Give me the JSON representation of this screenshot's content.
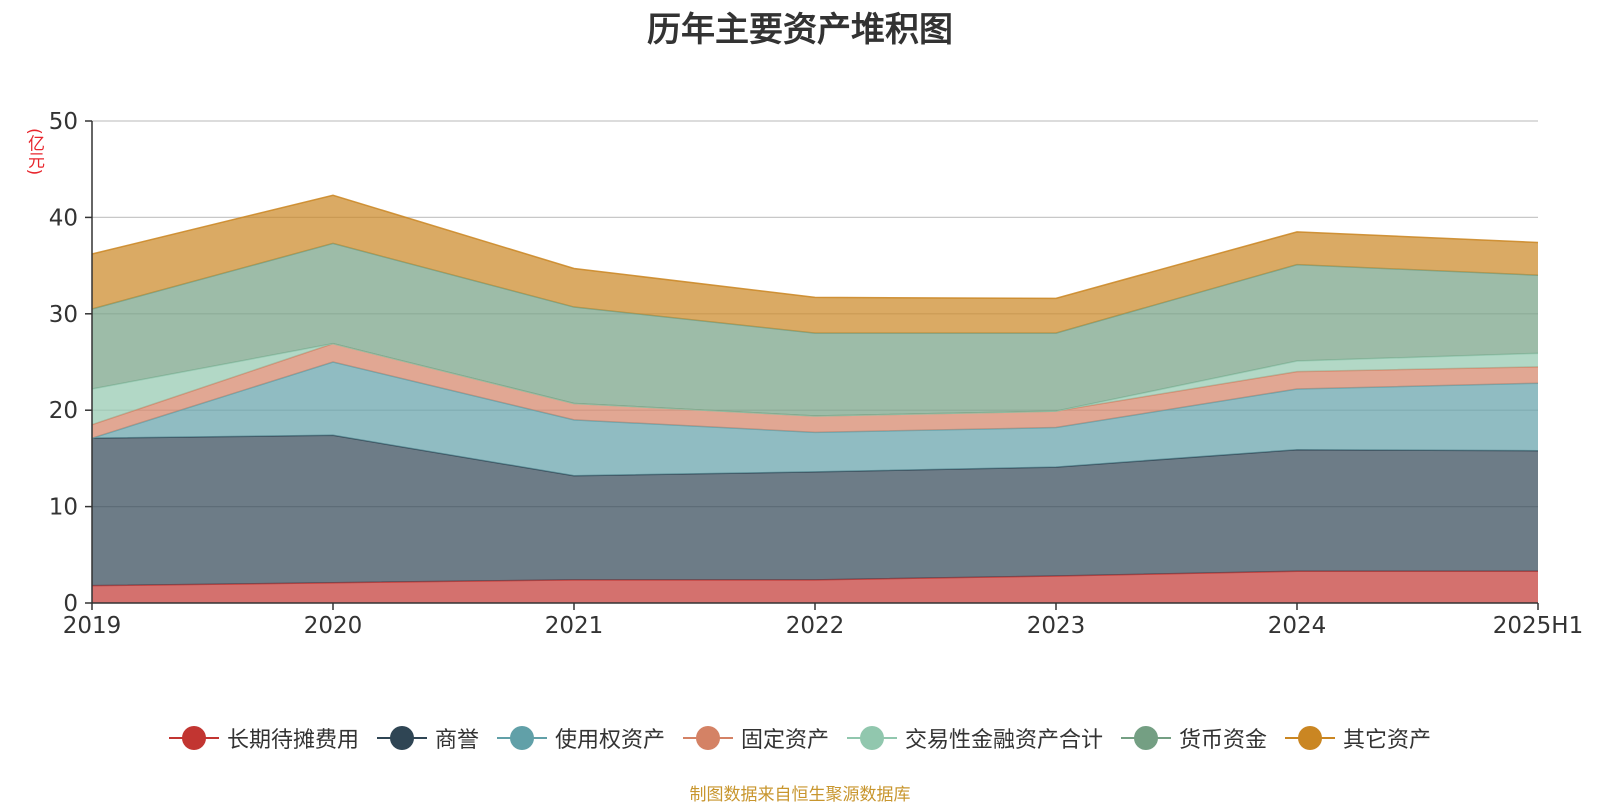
{
  "chart_data": {
    "type": "area",
    "stacked": true,
    "title": "历年主要资产堆积图",
    "unit_label": "(亿元)",
    "source": "制图数据来自恒生聚源数据库",
    "categories": [
      "2019",
      "2020",
      "2021",
      "2022",
      "2023",
      "2024",
      "2025H1"
    ],
    "ylim": [
      0,
      50
    ],
    "yticks": [
      0,
      10,
      20,
      30,
      40,
      50
    ],
    "grid": true,
    "legend_position": "bottom",
    "series": [
      {
        "name": "长期待摊费用",
        "color": "#c23531",
        "values": [
          1.8,
          2.1,
          2.4,
          2.4,
          2.8,
          3.3,
          3.3
        ]
      },
      {
        "name": "商誉",
        "color": "#2f4554",
        "values": [
          15.3,
          15.3,
          10.8,
          11.2,
          11.3,
          12.6,
          12.5
        ]
      },
      {
        "name": "使用权资产",
        "color": "#61a0a8",
        "values": [
          0.0,
          7.6,
          5.8,
          4.1,
          4.1,
          6.3,
          7.0
        ]
      },
      {
        "name": "固定资产",
        "color": "#d48265",
        "values": [
          1.4,
          1.9,
          1.7,
          1.7,
          1.7,
          1.8,
          1.7
        ]
      },
      {
        "name": "交易性金融资产合计",
        "color": "#91c7ae",
        "values": [
          3.7,
          0.0,
          0.0,
          0.0,
          0.0,
          1.1,
          1.4
        ]
      },
      {
        "name": "货币资金",
        "color": "#749f83",
        "values": [
          8.3,
          10.4,
          10.0,
          8.6,
          8.1,
          10.0,
          8.1
        ]
      },
      {
        "name": "其它资产",
        "color": "#ca8622",
        "values": [
          5.7,
          5.0,
          4.0,
          3.7,
          3.6,
          3.4,
          3.4
        ]
      }
    ]
  }
}
